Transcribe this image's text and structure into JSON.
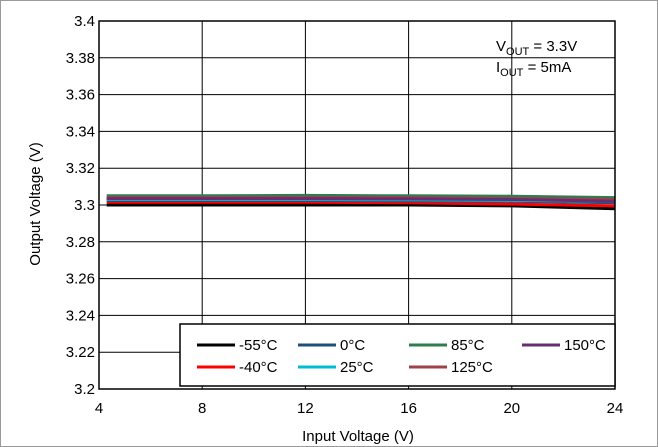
{
  "chart_data": {
    "type": "line",
    "title": "",
    "xlabel": "Input Voltage (V)",
    "ylabel": "Output Voltage (V)",
    "xlim": [
      4,
      24
    ],
    "ylim": [
      3.2,
      3.4
    ],
    "xticks": [
      4,
      8,
      12,
      16,
      20,
      24
    ],
    "xtick_labels": [
      "4",
      "8",
      "12",
      "16",
      "20",
      "24"
    ],
    "yticks": [
      3.2,
      3.22,
      3.24,
      3.26,
      3.28,
      3.3,
      3.32,
      3.34,
      3.36,
      3.38,
      3.4
    ],
    "ytick_labels": [
      "3.2",
      "3.22",
      "3.24",
      "3.26",
      "3.28",
      "3.3",
      "3.32",
      "3.34",
      "3.36",
      "3.38",
      "3.4"
    ],
    "grid": true,
    "legend_position": "bottom-right",
    "annotation": {
      "vout_main": "V",
      "vout_sub": "OUT",
      "vout_rest": " = 3.3V",
      "iout_main": "I",
      "iout_sub": "OUT",
      "iout_rest": " = 5mA"
    },
    "series": [
      {
        "name": "-55°C",
        "color": "#000000",
        "x": [
          4.3,
          8,
          12,
          16,
          20,
          24
        ],
        "y": [
          3.3,
          3.3,
          3.3,
          3.3,
          3.2995,
          3.298
        ]
      },
      {
        "name": "-40°C",
        "color": "#ff0000",
        "x": [
          4.3,
          8,
          12,
          16,
          20,
          24
        ],
        "y": [
          3.3015,
          3.3015,
          3.3015,
          3.3012,
          3.3005,
          3.2995
        ]
      },
      {
        "name": "0°C",
        "color": "#1f4e79",
        "x": [
          4.3,
          8,
          12,
          16,
          20,
          24
        ],
        "y": [
          3.3025,
          3.3025,
          3.3025,
          3.3023,
          3.302,
          3.3012
        ]
      },
      {
        "name": "25°C",
        "color": "#00bcd4",
        "x": [
          4.3,
          8,
          12,
          16,
          20,
          24
        ],
        "y": [
          3.303,
          3.303,
          3.303,
          3.3028,
          3.3025,
          3.302
        ]
      },
      {
        "name": "85°C",
        "color": "#2e7d4f",
        "x": [
          4.3,
          8,
          12,
          16,
          20,
          24
        ],
        "y": [
          3.305,
          3.305,
          3.3052,
          3.305,
          3.3048,
          3.304
        ]
      },
      {
        "name": "125°C",
        "color": "#a0404a",
        "x": [
          4.3,
          8,
          12,
          16,
          20,
          24
        ],
        "y": [
          3.304,
          3.304,
          3.304,
          3.304,
          3.3035,
          3.303
        ]
      },
      {
        "name": "150°C",
        "color": "#6a2c70",
        "x": [
          4.3,
          8,
          12,
          16,
          20,
          24
        ],
        "y": [
          3.3035,
          3.3035,
          3.3035,
          3.3033,
          3.303,
          3.302
        ]
      }
    ]
  }
}
